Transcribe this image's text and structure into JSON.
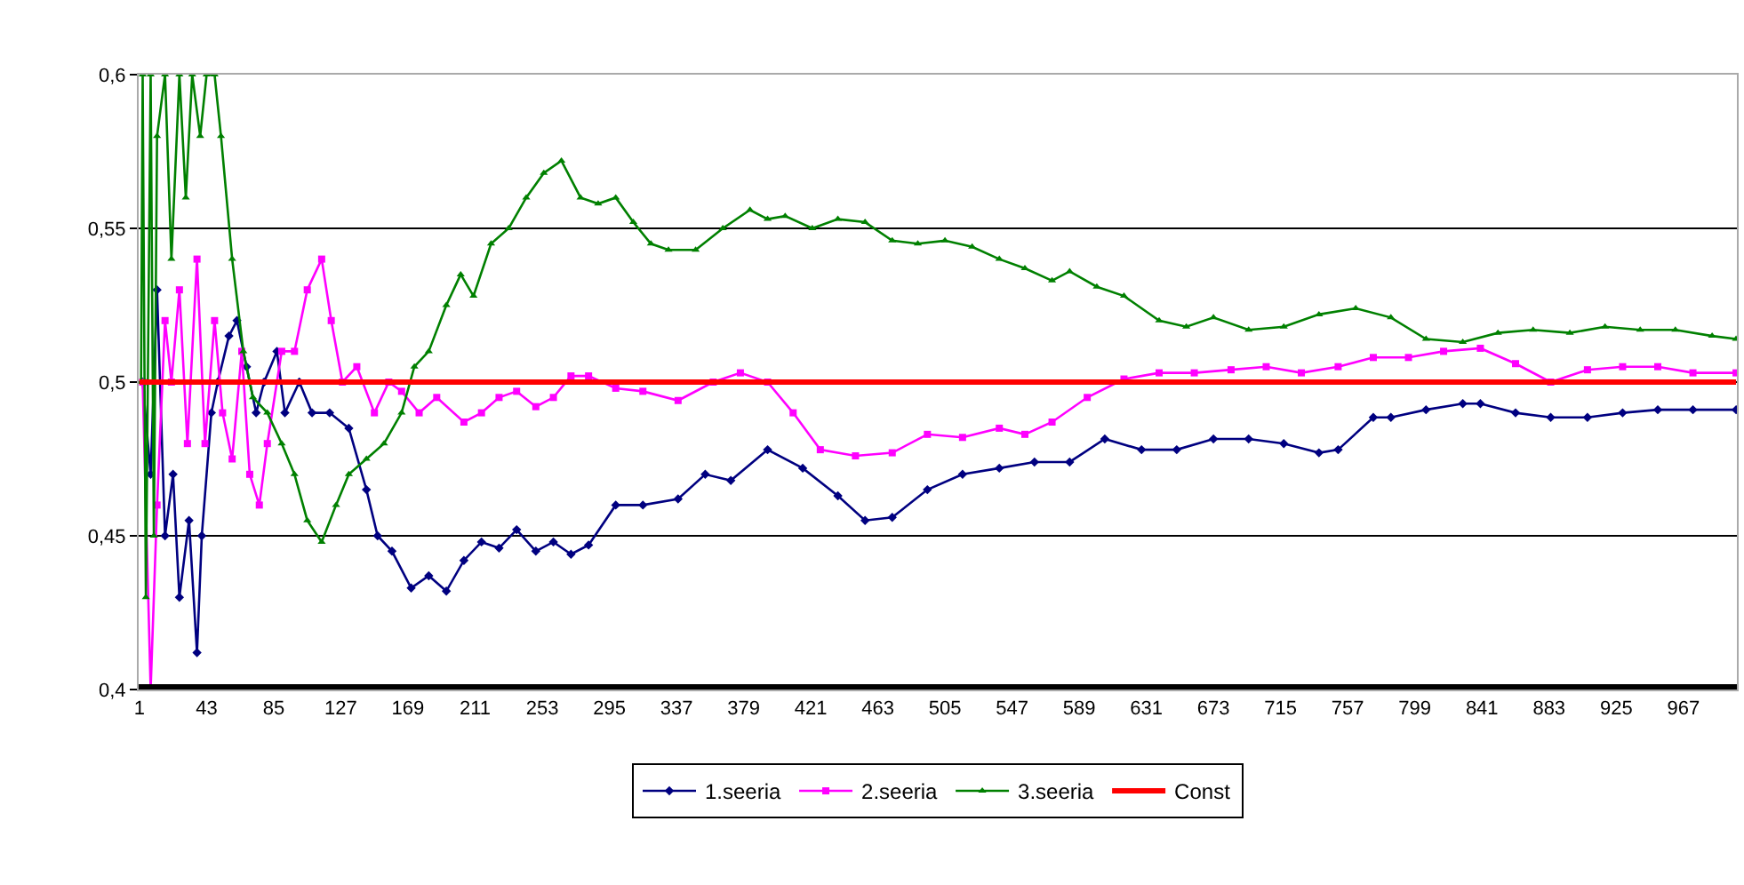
{
  "chart_data": {
    "type": "line",
    "xlim": [
      0.5,
      1000.5
    ],
    "xticks": [
      1,
      43,
      85,
      127,
      169,
      211,
      253,
      295,
      337,
      379,
      421,
      463,
      505,
      547,
      589,
      631,
      673,
      715,
      757,
      799,
      841,
      883,
      925,
      967
    ],
    "ylim": [
      0.4,
      0.6
    ],
    "yticks": [
      {
        "value": 0.4,
        "label": "0,4"
      },
      {
        "value": 0.45,
        "label": "0,45"
      },
      {
        "value": 0.5,
        "label": "0,5"
      },
      {
        "value": 0.55,
        "label": "0,55"
      },
      {
        "value": 0.6,
        "label": "0,6"
      }
    ],
    "grid": "y",
    "legend": "bottom",
    "series": [
      {
        "name": "1.seeria",
        "color": "#000080",
        "marker": "diamond",
        "x": [
          3,
          8,
          12,
          17,
          22,
          26,
          32,
          37,
          40,
          46,
          50,
          57,
          62,
          68,
          74,
          79,
          87,
          92,
          101,
          109,
          120,
          132,
          143,
          150,
          159,
          171,
          182,
          193,
          204,
          215,
          226,
          237,
          249,
          260,
          271,
          282,
          299,
          316,
          338,
          355,
          371,
          394,
          416,
          438,
          455,
          472,
          494,
          516,
          539,
          561,
          583,
          605,
          628,
          650,
          673,
          695,
          717,
          739,
          751,
          773,
          784,
          806,
          829,
          840,
          862,
          884,
          907,
          929,
          951,
          973,
          1000
        ],
        "values": [
          0.5,
          0.47,
          0.53,
          0.45,
          0.47,
          0.43,
          0.455,
          0.412,
          0.45,
          0.49,
          0.5,
          0.515,
          0.52,
          0.505,
          0.49,
          0.5,
          0.51,
          0.49,
          0.5,
          0.49,
          0.49,
          0.485,
          0.465,
          0.45,
          0.445,
          0.433,
          0.437,
          0.432,
          0.442,
          0.448,
          0.446,
          0.452,
          0.445,
          0.448,
          0.444,
          0.447,
          0.46,
          0.46,
          0.462,
          0.47,
          0.468,
          0.478,
          0.472,
          0.463,
          0.455,
          0.456,
          0.465,
          0.47,
          0.472,
          0.474,
          0.474,
          0.4815,
          0.478,
          0.478,
          0.4815,
          0.4815,
          0.48,
          0.477,
          0.478,
          0.4885,
          0.4885,
          0.491,
          0.493,
          0.493,
          0.49,
          0.4885,
          0.4885,
          0.49,
          0.491,
          0.491,
          0.491
        ]
      },
      {
        "name": "2.seeria",
        "color": "#ff00ff",
        "marker": "square",
        "x": [
          3,
          8,
          12,
          17,
          21,
          26,
          31,
          37,
          42,
          48,
          53,
          59,
          65,
          70,
          76,
          81,
          90,
          98,
          106,
          115,
          121,
          128,
          137,
          148,
          157,
          165,
          176,
          187,
          204,
          215,
          226,
          237,
          249,
          260,
          271,
          282,
          299,
          316,
          338,
          360,
          377,
          394,
          410,
          427,
          449,
          472,
          494,
          516,
          539,
          555,
          572,
          594,
          617,
          639,
          661,
          684,
          706,
          728,
          751,
          773,
          795,
          817,
          840,
          862,
          884,
          907,
          929,
          951,
          973,
          1000
        ],
        "values": [
          0.5,
          0.4,
          0.46,
          0.52,
          0.5,
          0.53,
          0.48,
          0.54,
          0.48,
          0.52,
          0.49,
          0.475,
          0.51,
          0.47,
          0.46,
          0.48,
          0.51,
          0.51,
          0.53,
          0.54,
          0.52,
          0.5,
          0.505,
          0.49,
          0.5,
          0.497,
          0.49,
          0.495,
          0.487,
          0.49,
          0.495,
          0.497,
          0.492,
          0.495,
          0.502,
          0.502,
          0.498,
          0.497,
          0.494,
          0.5,
          0.503,
          0.5,
          0.49,
          0.478,
          0.476,
          0.477,
          0.483,
          0.482,
          0.485,
          0.483,
          0.487,
          0.495,
          0.501,
          0.503,
          0.503,
          0.504,
          0.505,
          0.503,
          0.505,
          0.508,
          0.508,
          0.51,
          0.511,
          0.506,
          0.5,
          0.504,
          0.505,
          0.505,
          0.503,
          0.503
        ]
      },
      {
        "name": "3.seeria",
        "color": "#008000",
        "marker": "triangle",
        "x": [
          2,
          3,
          5,
          8,
          10,
          12,
          17,
          21,
          26,
          30,
          34,
          39,
          43,
          48,
          52,
          59,
          66,
          72,
          81,
          90,
          98,
          106,
          115,
          124,
          132,
          143,
          154,
          165,
          173,
          182,
          193,
          202,
          210,
          221,
          232,
          243,
          254,
          265,
          277,
          288,
          299,
          310,
          321,
          332,
          349,
          366,
          383,
          394,
          405,
          422,
          438,
          455,
          472,
          488,
          505,
          522,
          539,
          555,
          572,
          583,
          600,
          617,
          639,
          656,
          673,
          695,
          717,
          739,
          762,
          784,
          806,
          829,
          851,
          873,
          896,
          918,
          940,
          962,
          985,
          1000
        ],
        "values": [
          0.5,
          0.6,
          0.43,
          0.6,
          0.45,
          0.58,
          0.6,
          0.54,
          0.6,
          0.56,
          0.6,
          0.58,
          0.6,
          0.6,
          0.58,
          0.54,
          0.51,
          0.495,
          0.49,
          0.48,
          0.47,
          0.455,
          0.448,
          0.46,
          0.47,
          0.475,
          0.48,
          0.49,
          0.505,
          0.51,
          0.525,
          0.535,
          0.528,
          0.545,
          0.55,
          0.56,
          0.568,
          0.572,
          0.56,
          0.558,
          0.56,
          0.552,
          0.545,
          0.543,
          0.543,
          0.55,
          0.556,
          0.553,
          0.554,
          0.55,
          0.553,
          0.552,
          0.546,
          0.545,
          0.546,
          0.544,
          0.54,
          0.537,
          0.533,
          0.536,
          0.531,
          0.528,
          0.52,
          0.518,
          0.521,
          0.517,
          0.518,
          0.522,
          0.524,
          0.521,
          0.514,
          0.513,
          0.516,
          0.517,
          0.516,
          0.518,
          0.517,
          0.517,
          0.515,
          0.514
        ]
      },
      {
        "name": "Const",
        "color": "#ff0000",
        "marker": "none",
        "x": [
          1,
          1000
        ],
        "values": [
          0.5,
          0.5
        ]
      }
    ]
  }
}
